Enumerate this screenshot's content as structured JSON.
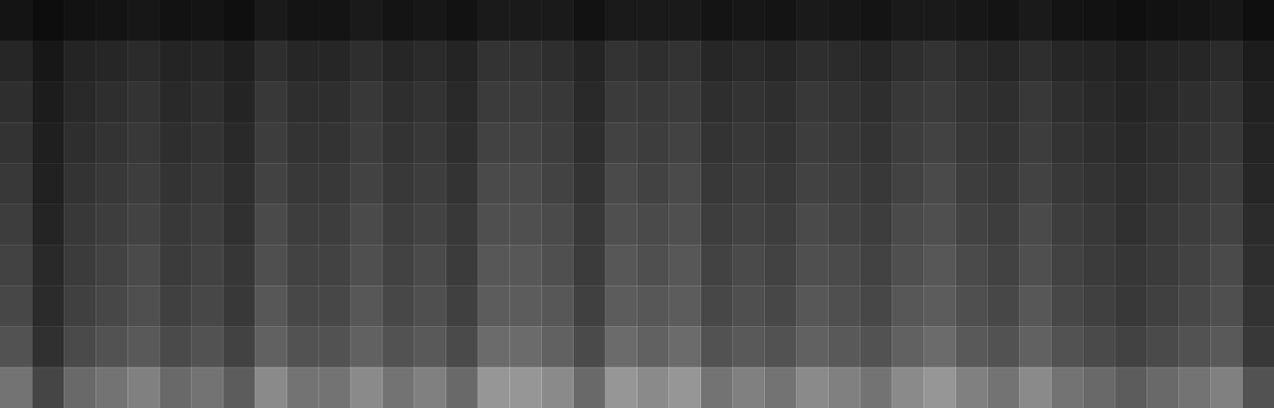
{
  "chart_data": {
    "type": "heatmap",
    "tick_labels": false,
    "color": "#ffffff",
    "zlim": [
      0,
      100
    ],
    "cells": [
      [
        8,
        5,
        7,
        8,
        9,
        7,
        8,
        6,
        10,
        8,
        8,
        10,
        8,
        9,
        7,
        10,
        10,
        10,
        7,
        10,
        10,
        10,
        8,
        9,
        8,
        10,
        9,
        8,
        10,
        10,
        9,
        8,
        10,
        8,
        7,
        6,
        7,
        8,
        9,
        6
      ],
      [
        15,
        9,
        14,
        15,
        17,
        14,
        15,
        12,
        18,
        15,
        15,
        18,
        15,
        17,
        14,
        20,
        20,
        18,
        14,
        20,
        18,
        20,
        15,
        17,
        15,
        18,
        17,
        15,
        18,
        20,
        17,
        15,
        18,
        15,
        14,
        12,
        14,
        15,
        17,
        11
      ],
      [
        18,
        11,
        16,
        18,
        20,
        16,
        18,
        14,
        22,
        18,
        18,
        22,
        18,
        20,
        16,
        23,
        23,
        22,
        16,
        23,
        22,
        23,
        18,
        20,
        18,
        22,
        20,
        18,
        22,
        23,
        20,
        18,
        22,
        18,
        16,
        14,
        16,
        18,
        20,
        13
      ],
      [
        20,
        12,
        18,
        20,
        22,
        18,
        20,
        16,
        24,
        20,
        20,
        24,
        20,
        22,
        18,
        26,
        26,
        24,
        18,
        26,
        24,
        26,
        20,
        22,
        20,
        24,
        22,
        20,
        24,
        26,
        22,
        20,
        24,
        20,
        18,
        16,
        18,
        20,
        22,
        14
      ],
      [
        22,
        13,
        20,
        22,
        24,
        20,
        22,
        18,
        26,
        22,
        22,
        26,
        22,
        24,
        20,
        29,
        29,
        26,
        20,
        29,
        26,
        29,
        22,
        24,
        22,
        26,
        24,
        22,
        26,
        29,
        24,
        22,
        26,
        22,
        20,
        18,
        20,
        22,
        24,
        15
      ],
      [
        24,
        14,
        22,
        24,
        26,
        22,
        24,
        19,
        29,
        24,
        24,
        29,
        24,
        26,
        22,
        31,
        31,
        29,
        22,
        31,
        29,
        31,
        24,
        26,
        24,
        29,
        26,
        24,
        29,
        31,
        26,
        24,
        29,
        24,
        22,
        19,
        22,
        24,
        26,
        17
      ],
      [
        26,
        16,
        23,
        26,
        29,
        23,
        26,
        21,
        31,
        26,
        26,
        31,
        26,
        29,
        23,
        34,
        34,
        31,
        23,
        34,
        31,
        34,
        26,
        29,
        26,
        31,
        29,
        26,
        31,
        34,
        29,
        26,
        31,
        26,
        23,
        21,
        23,
        26,
        29,
        18
      ],
      [
        28,
        17,
        25,
        28,
        31,
        25,
        28,
        22,
        34,
        28,
        28,
        34,
        28,
        31,
        25,
        36,
        36,
        34,
        25,
        36,
        34,
        36,
        28,
        31,
        28,
        34,
        31,
        28,
        34,
        36,
        31,
        28,
        34,
        28,
        25,
        22,
        25,
        28,
        31,
        20
      ],
      [
        32,
        19,
        29,
        32,
        35,
        29,
        32,
        26,
        38,
        32,
        32,
        38,
        32,
        35,
        29,
        42,
        42,
        38,
        29,
        42,
        38,
        42,
        32,
        35,
        32,
        38,
        35,
        32,
        38,
        42,
        35,
        32,
        38,
        32,
        29,
        26,
        29,
        32,
        35,
        22
      ],
      [
        45,
        27,
        41,
        45,
        50,
        41,
        45,
        36,
        54,
        45,
        45,
        54,
        45,
        50,
        41,
        59,
        59,
        54,
        41,
        59,
        54,
        59,
        45,
        50,
        45,
        54,
        50,
        45,
        54,
        59,
        50,
        45,
        54,
        45,
        41,
        36,
        41,
        45,
        50,
        32
      ]
    ]
  }
}
